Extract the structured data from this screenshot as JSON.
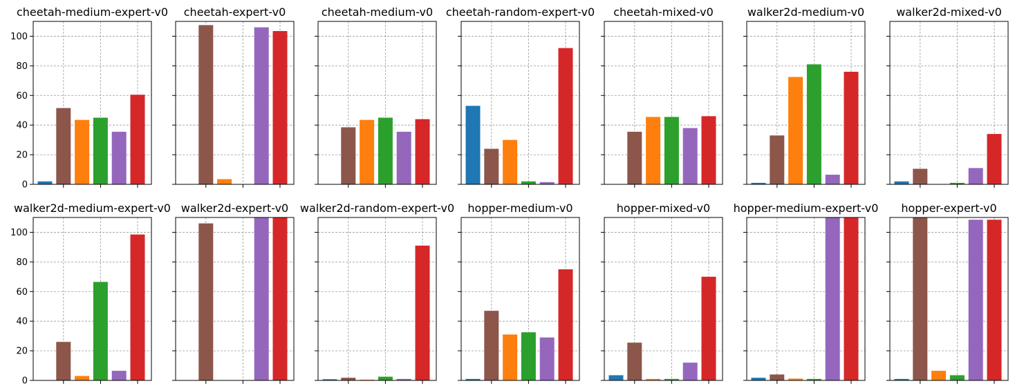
{
  "chart_data": [
    {
      "type": "bar",
      "title": "cheetah-medium-expert-v0",
      "ylim": [
        0,
        110
      ],
      "yticks": [
        0,
        20,
        40,
        60,
        80,
        100
      ],
      "grid": true,
      "values": [
        2,
        51.5,
        43.5,
        45,
        35.5,
        60.5
      ]
    },
    {
      "type": "bar",
      "title": "cheetah-expert-v0",
      "ylim": [
        0,
        110
      ],
      "yticks": [
        0,
        20,
        40,
        60,
        80,
        100
      ],
      "grid": true,
      "values": [
        0,
        107.5,
        3.5,
        0,
        106,
        103.5
      ]
    },
    {
      "type": "bar",
      "title": "cheetah-medium-v0",
      "ylim": [
        0,
        110
      ],
      "yticks": [
        0,
        20,
        40,
        60,
        80,
        100
      ],
      "grid": true,
      "values": [
        0,
        38.5,
        43.5,
        45,
        35.5,
        44
      ]
    },
    {
      "type": "bar",
      "title": "cheetah-random-expert-v0",
      "ylim": [
        0,
        110
      ],
      "yticks": [
        0,
        20,
        40,
        60,
        80,
        100
      ],
      "grid": true,
      "values": [
        53,
        24,
        30,
        2,
        1.5,
        92
      ]
    },
    {
      "type": "bar",
      "title": "cheetah-mixed-v0",
      "ylim": [
        0,
        110
      ],
      "yticks": [
        0,
        20,
        40,
        60,
        80,
        100
      ],
      "grid": true,
      "values": [
        0,
        35.5,
        45.5,
        45.5,
        38,
        46
      ]
    },
    {
      "type": "bar",
      "title": "walker2d-medium-v0",
      "ylim": [
        0,
        110
      ],
      "yticks": [
        0,
        20,
        40,
        60,
        80,
        100
      ],
      "grid": true,
      "values": [
        1,
        33,
        72.5,
        81,
        6.5,
        76
      ]
    },
    {
      "type": "bar",
      "title": "walker2d-mixed-v0",
      "ylim": [
        0,
        110
      ],
      "yticks": [
        0,
        20,
        40,
        60,
        80,
        100
      ],
      "grid": true,
      "values": [
        2,
        10.5,
        0,
        1,
        11,
        34
      ]
    },
    {
      "type": "bar",
      "title": "walker2d-medium-expert-v0",
      "ylim": [
        0,
        110
      ],
      "yticks": [
        0,
        20,
        40,
        60,
        80,
        100
      ],
      "grid": true,
      "values": [
        0,
        26,
        3,
        66.5,
        6.5,
        98.5
      ]
    },
    {
      "type": "bar",
      "title": "walker2d-expert-v0",
      "ylim": [
        0,
        110
      ],
      "yticks": [
        0,
        20,
        40,
        60,
        80,
        100
      ],
      "grid": true,
      "values": [
        0,
        106,
        0,
        0,
        110,
        110
      ]
    },
    {
      "type": "bar",
      "title": "walker2d-random-expert-v0",
      "ylim": [
        0,
        110
      ],
      "yticks": [
        0,
        20,
        40,
        60,
        80,
        100
      ],
      "grid": true,
      "values": [
        0.8,
        1.8,
        0.5,
        2.5,
        1,
        91
      ]
    },
    {
      "type": "bar",
      "title": "hopper-medium-v0",
      "ylim": [
        0,
        110
      ],
      "yticks": [
        0,
        20,
        40,
        60,
        80,
        100
      ],
      "grid": true,
      "values": [
        1,
        47,
        31,
        32.5,
        29,
        75
      ]
    },
    {
      "type": "bar",
      "title": "hopper-mixed-v0",
      "ylim": [
        0,
        110
      ],
      "yticks": [
        0,
        20,
        40,
        60,
        80,
        100
      ],
      "grid": true,
      "values": [
        3.5,
        25.5,
        1,
        1,
        12,
        70
      ]
    },
    {
      "type": "bar",
      "title": "hopper-medium-expert-v0",
      "ylim": [
        0,
        110
      ],
      "yticks": [
        0,
        20,
        40,
        60,
        80,
        100
      ],
      "grid": true,
      "values": [
        1.8,
        4,
        1.2,
        1,
        110,
        110
      ]
    },
    {
      "type": "bar",
      "title": "hopper-expert-v0",
      "ylim": [
        0,
        110
      ],
      "yticks": [
        0,
        20,
        40,
        60,
        80,
        100
      ],
      "grid": true,
      "values": [
        1,
        110,
        6.5,
        3.5,
        108.5,
        108.5
      ]
    }
  ],
  "colors": [
    "#1f77b4",
    "#8c564b",
    "#ff7f0e",
    "#2ca02c",
    "#9467bd",
    "#d62728"
  ]
}
